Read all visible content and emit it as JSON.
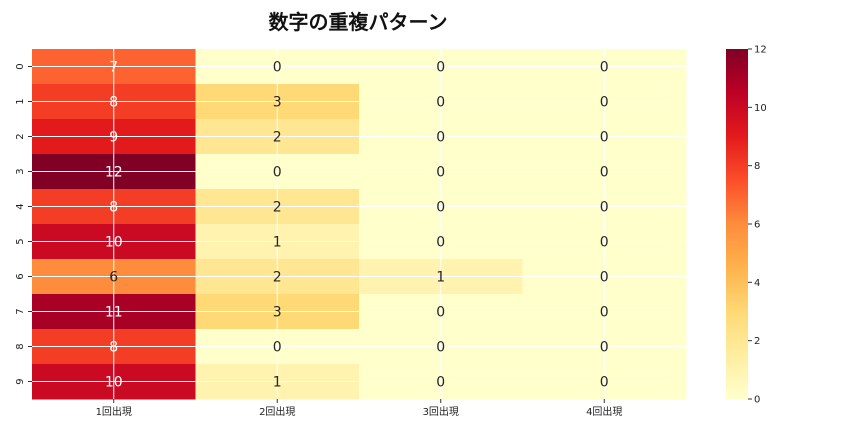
{
  "chart_data": {
    "type": "heatmap",
    "title": "数字の重複パターン",
    "xlabel": "",
    "ylabel": "",
    "x_categories": [
      "1回出現",
      "2回出現",
      "3回出現",
      "4回出現"
    ],
    "y_categories": [
      "0",
      "1",
      "2",
      "3",
      "4",
      "5",
      "6",
      "7",
      "8",
      "9"
    ],
    "values": [
      [
        7,
        0,
        0,
        0
      ],
      [
        8,
        3,
        0,
        0
      ],
      [
        9,
        2,
        0,
        0
      ],
      [
        12,
        0,
        0,
        0
      ],
      [
        8,
        2,
        0,
        0
      ],
      [
        10,
        1,
        0,
        0
      ],
      [
        6,
        2,
        1,
        0
      ],
      [
        11,
        3,
        0,
        0
      ],
      [
        8,
        0,
        0,
        0
      ],
      [
        10,
        1,
        0,
        0
      ]
    ],
    "colormap": "YlOrRd",
    "vmin": 0,
    "vmax": 12,
    "colorbar_ticks": [
      0,
      2,
      4,
      6,
      8,
      10,
      12
    ],
    "annotations": true,
    "grid": true
  }
}
